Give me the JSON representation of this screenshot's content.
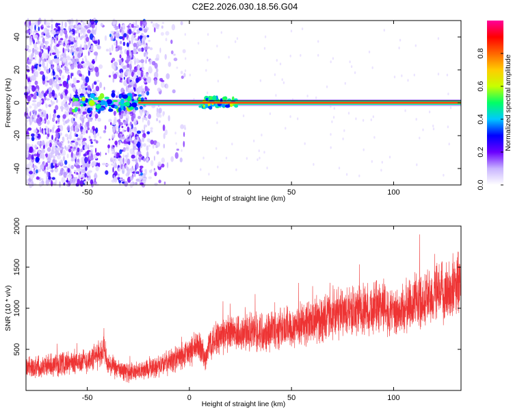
{
  "title": "C2E2.2026.030.18.56.G04",
  "colorbar": {
    "label": "Normalized spectral amplitude",
    "range": [
      0.0,
      1.0
    ],
    "ticks": [
      "0.0",
      "0.2",
      "0.4",
      "0.6",
      "0.8"
    ],
    "tick_values": [
      0.0,
      0.2,
      0.4,
      0.6,
      0.8
    ],
    "colors": [
      "#ffffff",
      "#c8b4ff",
      "#6a00ff",
      "#0000ff",
      "#00c8ff",
      "#00ff66",
      "#c8ff00",
      "#ffcc00",
      "#ff6600",
      "#ff0000",
      "#ff0099"
    ]
  },
  "chart_data": [
    {
      "type": "heatmap",
      "xlabel": "Height of straight line (km)",
      "ylabel": "Frequency (Hz)",
      "xlim": [
        -80,
        133
      ],
      "ylim": [
        -50,
        50
      ],
      "xticks": [
        -50,
        0,
        50,
        100
      ],
      "xtick_labels": [
        "-50",
        "0",
        "50",
        "100"
      ],
      "yticks": [
        -40,
        -20,
        0,
        20,
        40
      ],
      "ytick_labels": [
        "-40",
        "-20",
        "0",
        "20",
        "40"
      ],
      "grid": false,
      "description_values": {
        "signal_line_frequency_hz": 0,
        "signal_line_x_start_km": -57,
        "signal_line_x_end_km": 133,
        "signal_line_amplitude": 0.9,
        "noise_region_x_range_km": [
          -80,
          -12
        ]
      }
    },
    {
      "type": "line",
      "xlabel": "Height of straight line (km)",
      "ylabel": "SNR (10 * v/v)",
      "xlim": [
        -80,
        133
      ],
      "ylim": [
        0,
        2000
      ],
      "xticks": [
        -50,
        0,
        50,
        100
      ],
      "xtick_labels": [
        "-50",
        "0",
        "50",
        "100"
      ],
      "yticks": [
        500,
        1000,
        1500,
        2000
      ],
      "ytick_labels": [
        "500",
        "1000",
        "1500",
        "2000"
      ],
      "grid": false,
      "series": [
        {
          "color": "#ee3333",
          "x": [
            -80,
            -70,
            -60,
            -50,
            -45,
            -42,
            -40,
            -35,
            -30,
            -25,
            -20,
            -15,
            -10,
            -5,
            0,
            5,
            8,
            10,
            15,
            20,
            30,
            40,
            50,
            60,
            70,
            80,
            90,
            95,
            100,
            110,
            120,
            130,
            133
          ],
          "y": [
            280,
            300,
            330,
            360,
            420,
            500,
            320,
            250,
            220,
            230,
            260,
            300,
            350,
            400,
            460,
            560,
            350,
            600,
            650,
            680,
            700,
            740,
            780,
            840,
            900,
            960,
            1000,
            1050,
            900,
            1080,
            1150,
            1250,
            1350
          ]
        }
      ]
    }
  ]
}
